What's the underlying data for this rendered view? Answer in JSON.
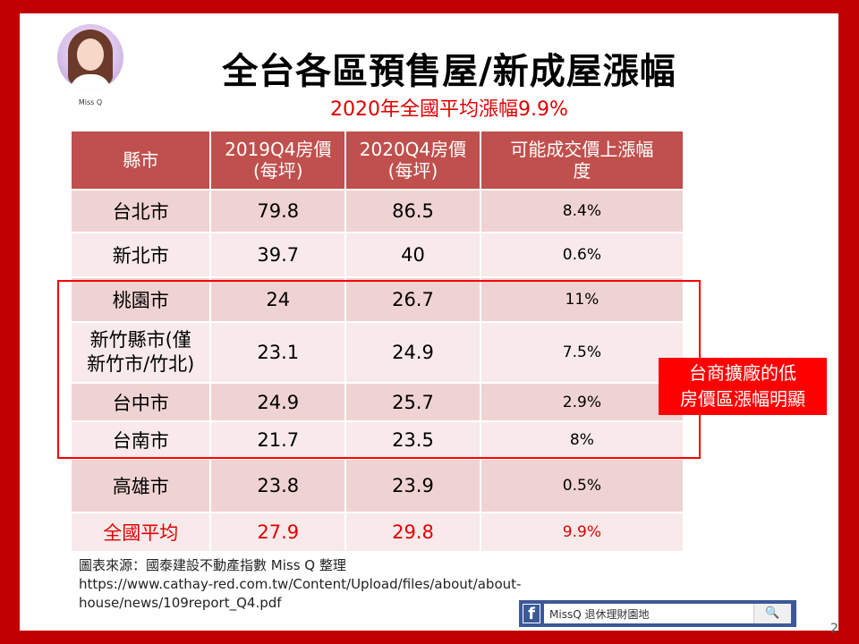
{
  "avatar": {
    "label": "Miss Q"
  },
  "title": "全台各區預售屋/新成屋漲幅",
  "subtitle": "2020年全國平均漲幅9.9%",
  "table": {
    "headers": [
      "縣市",
      "2019Q4房價\n(每坪)",
      "2020Q4房價\n(每坪)",
      "可能成交價上漲幅\n度"
    ],
    "rows": [
      {
        "city": "台北市",
        "p2019": "79.8",
        "p2020": "86.5",
        "rise": "8.4%"
      },
      {
        "city": "新北市",
        "p2019": "39.7",
        "p2020": "40",
        "rise": "0.6%"
      },
      {
        "city": "桃園市",
        "p2019": "24",
        "p2020": "26.7",
        "rise": "11%"
      },
      {
        "city": "新竹縣市(僅\n新竹市/竹北)",
        "p2019": "23.1",
        "p2020": "24.9",
        "rise": "7.5%"
      },
      {
        "city": "台中市",
        "p2019": "24.9",
        "p2020": "25.7",
        "rise": "2.9%"
      },
      {
        "city": "台南市",
        "p2019": "21.7",
        "p2020": "23.5",
        "rise": "8%"
      },
      {
        "city": "高雄市",
        "p2019": "23.8",
        "p2020": "23.9",
        "rise": "0.5%"
      },
      {
        "city": "全國平均",
        "p2019": "27.9",
        "p2020": "29.8",
        "rise": "9.9%"
      }
    ]
  },
  "callout": {
    "line1": "台商擴廠的低",
    "line2": "房價區漲幅明顯"
  },
  "source": {
    "line1": "圖表來源：國泰建設不動產指數  Miss Q 整理",
    "line2": "https://www.cathay-red.com.tw/Content/Upload/files/about/about-",
    "line3": "house/news/109report_Q4.pdf"
  },
  "fbbar": {
    "logo": "f",
    "text": "MissQ 退休理財園地",
    "search_glyph": "🔍"
  },
  "page_number": "2"
}
